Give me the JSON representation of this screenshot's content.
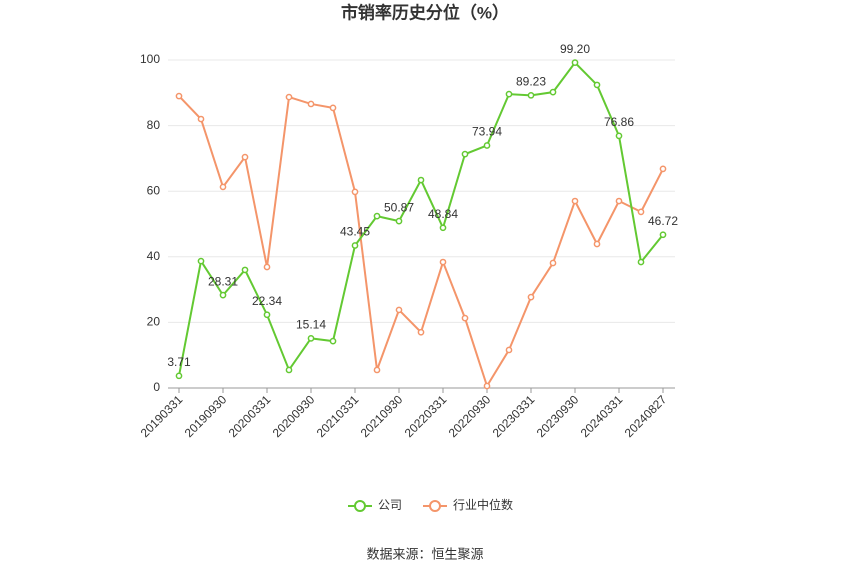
{
  "chart_data": {
    "type": "line",
    "title": "市销率历史分位（%）",
    "categories": [
      "20190331",
      null,
      "20190930",
      null,
      "20200331",
      null,
      "20200930",
      null,
      "20210331",
      null,
      "20210930",
      null,
      "20220331",
      null,
      "20220930",
      null,
      "20230331",
      null,
      "20230930",
      null,
      "20240331",
      null,
      "20240827"
    ],
    "series": [
      {
        "name": "公司",
        "color": "#63c932",
        "values": [
          3.71,
          38.7,
          28.31,
          36,
          22.34,
          5.5,
          15.14,
          14.3,
          43.45,
          52.4,
          50.87,
          63.4,
          48.84,
          71.3,
          73.94,
          89.6,
          89.23,
          90.2,
          99.2,
          92.4,
          76.86,
          38.4,
          46.72
        ],
        "value_labels": [
          "3.71",
          null,
          "28.31",
          null,
          "22.34",
          null,
          "15.14",
          null,
          "43.45",
          null,
          "50.87",
          null,
          "48.84",
          null,
          "73.94",
          null,
          "89.23",
          null,
          "99.20",
          null,
          "76.86",
          null,
          "46.72"
        ]
      },
      {
        "name": "行业中位数",
        "color": "#f4956a",
        "values": [
          89,
          82,
          61.3,
          70.4,
          36.9,
          88.7,
          86.6,
          85.4,
          59.8,
          5.5,
          23.8,
          17,
          38.4,
          21.3,
          0.6,
          11.6,
          27.7,
          38.1,
          57,
          43.9,
          57,
          53.7,
          66.8
        ]
      }
    ],
    "ylim": [
      0,
      100
    ],
    "yticks": [
      0,
      20,
      40,
      60,
      80,
      100
    ],
    "grid": true,
    "source": "数据来源：恒生聚源"
  }
}
